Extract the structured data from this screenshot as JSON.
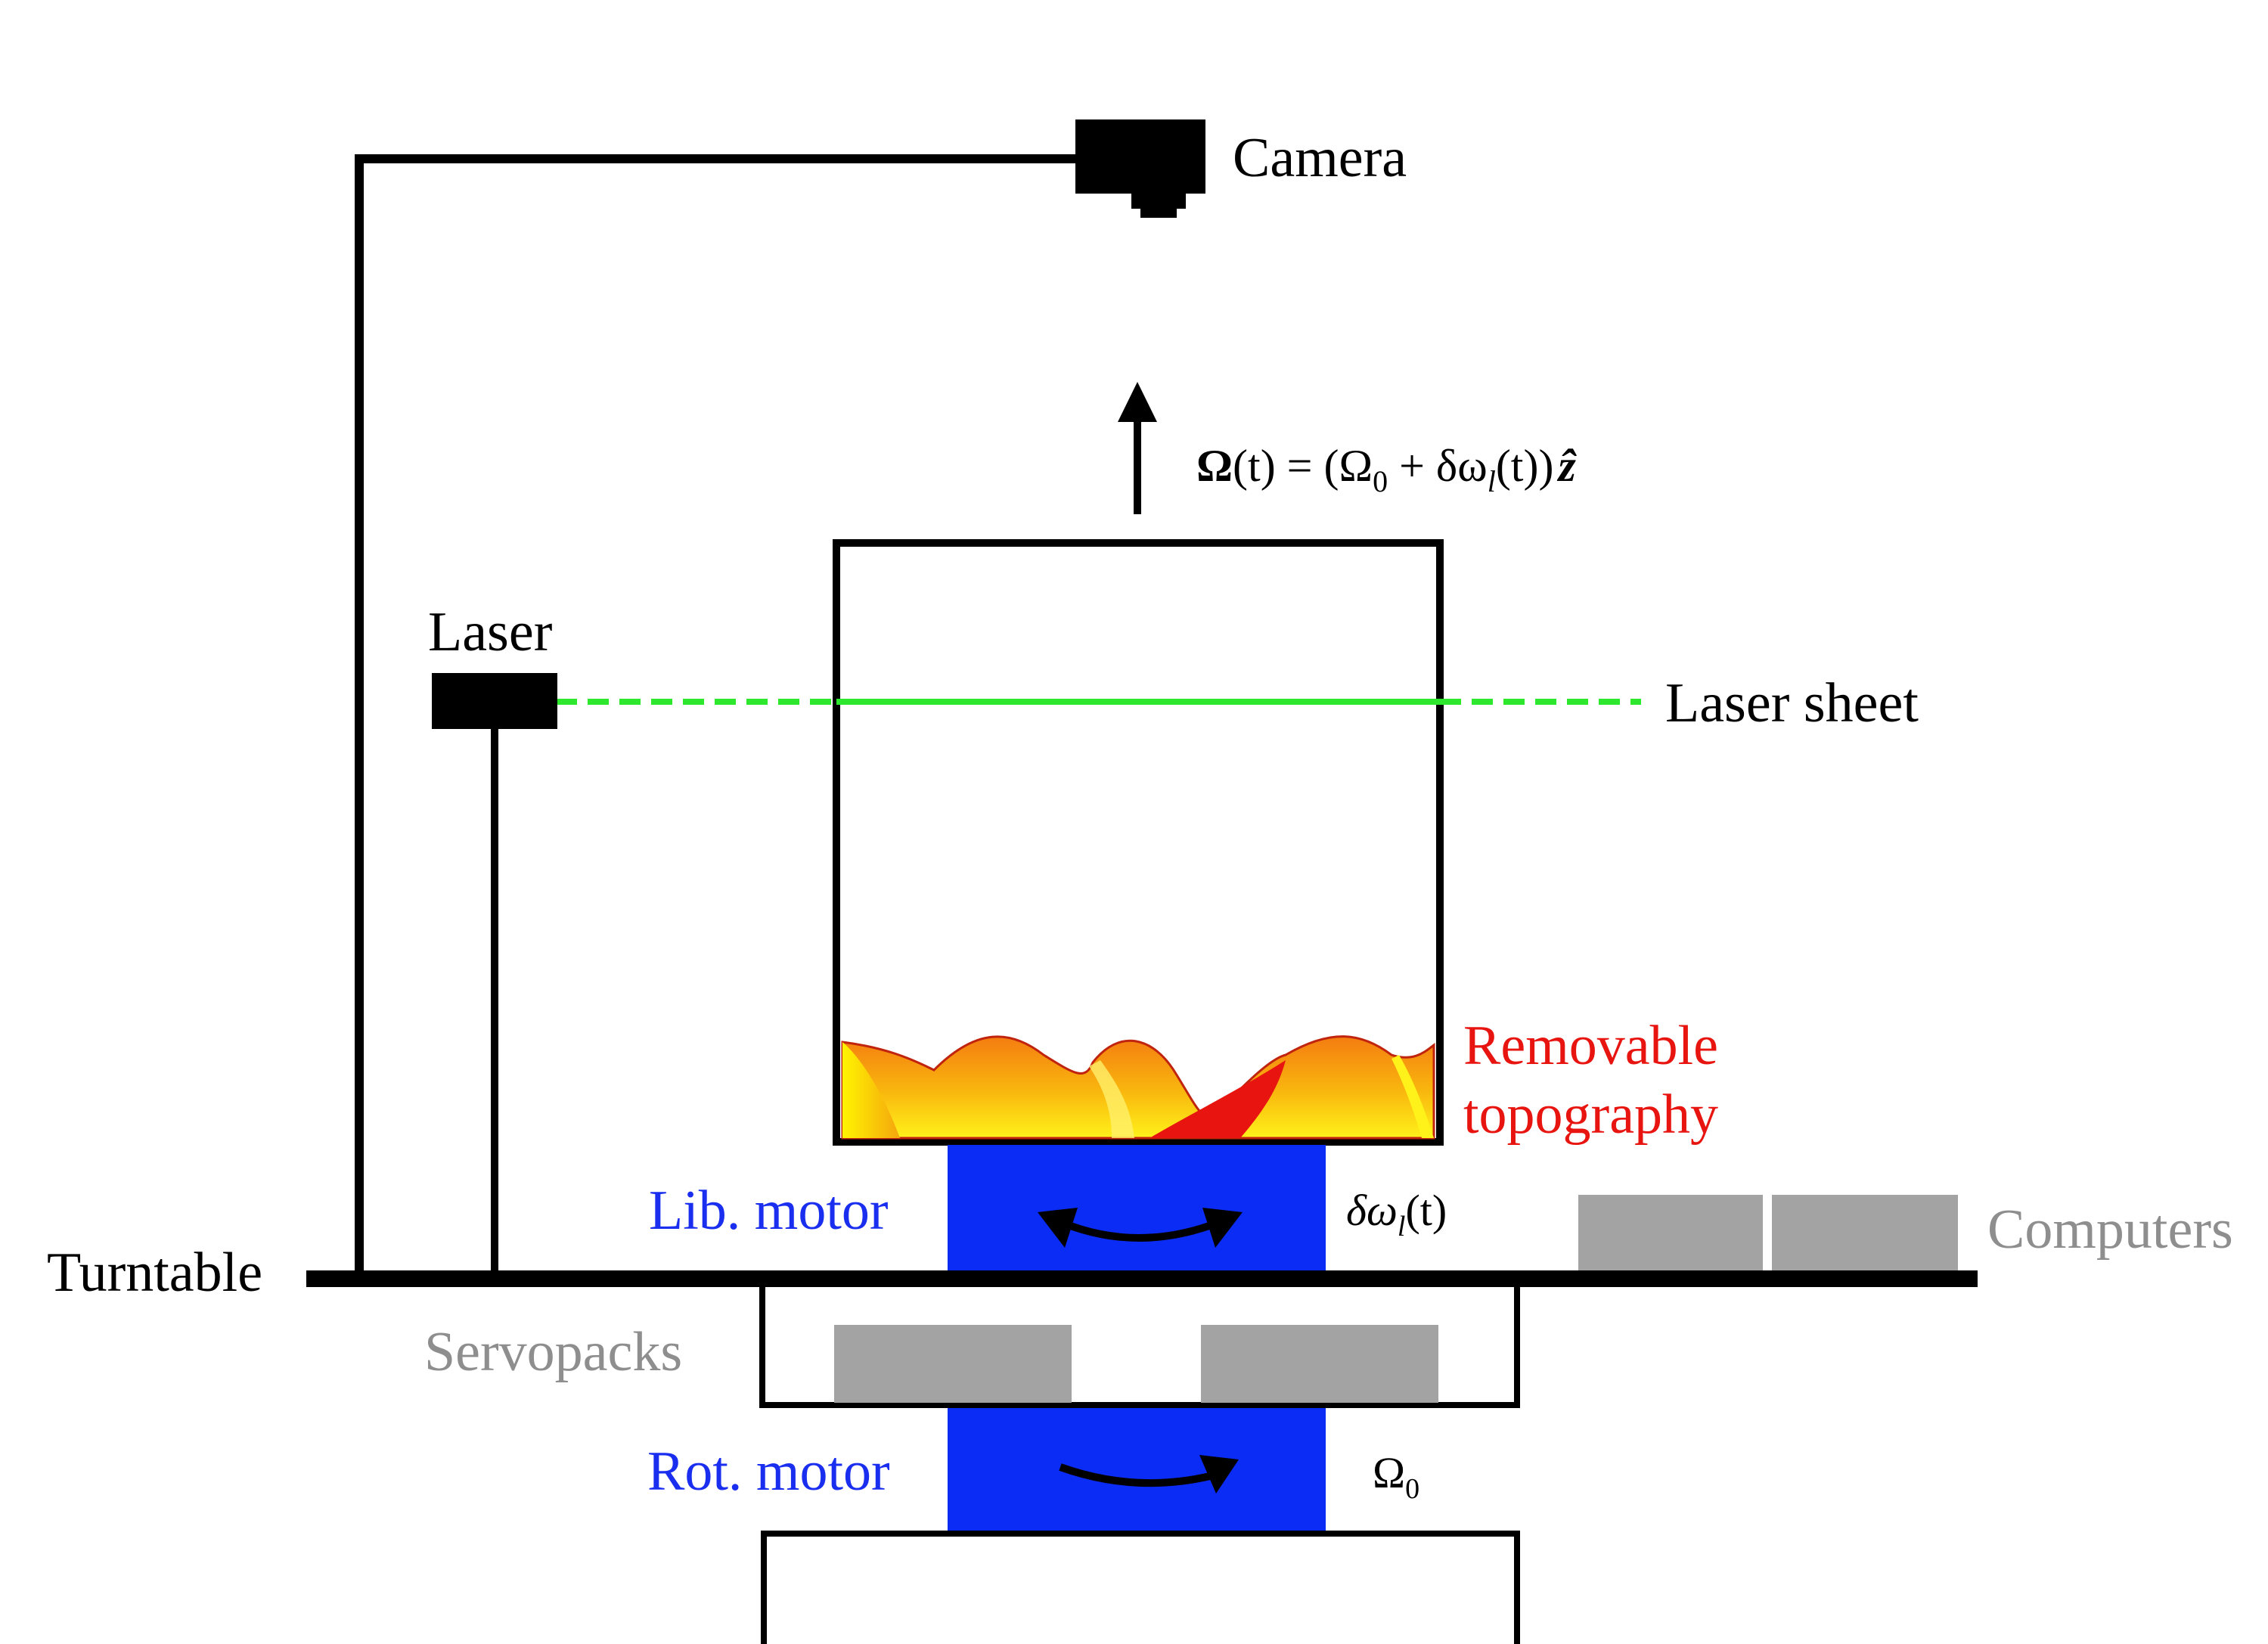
{
  "labels": {
    "camera": "Camera",
    "laser": "Laser",
    "laser_sheet": "Laser sheet",
    "removable_topography_line1": "Removable",
    "removable_topography_line2": "topography",
    "lib_motor": "Lib. motor",
    "rot_motor": "Rot. motor",
    "turntable": "Turntable",
    "servopacks": "Servopacks",
    "computers": "Computers"
  },
  "math": {
    "omega_bold": "Ω",
    "rotation_rate_rest": "(t) = (Ω",
    "rotation_rate_sub0": "0",
    "rotation_rate_mid": " + δω",
    "rotation_rate_subl": "l",
    "rotation_rate_end": "(t))",
    "z_hat": "ẑ",
    "libration_prefix": "δω",
    "libration_sub": "l",
    "libration_suffix": "(t)",
    "omega0_base": "Ω",
    "omega0_sub": "0"
  },
  "colors": {
    "structure": "#000000",
    "motor_blue": "#0a2cf5",
    "motor_label_blue": "#1a2ef0",
    "laser_green": "#2ee82e",
    "equipment_gray": "#a3a3a3",
    "gray_label": "#8e8e8e",
    "topography_red": "#e8140f"
  }
}
